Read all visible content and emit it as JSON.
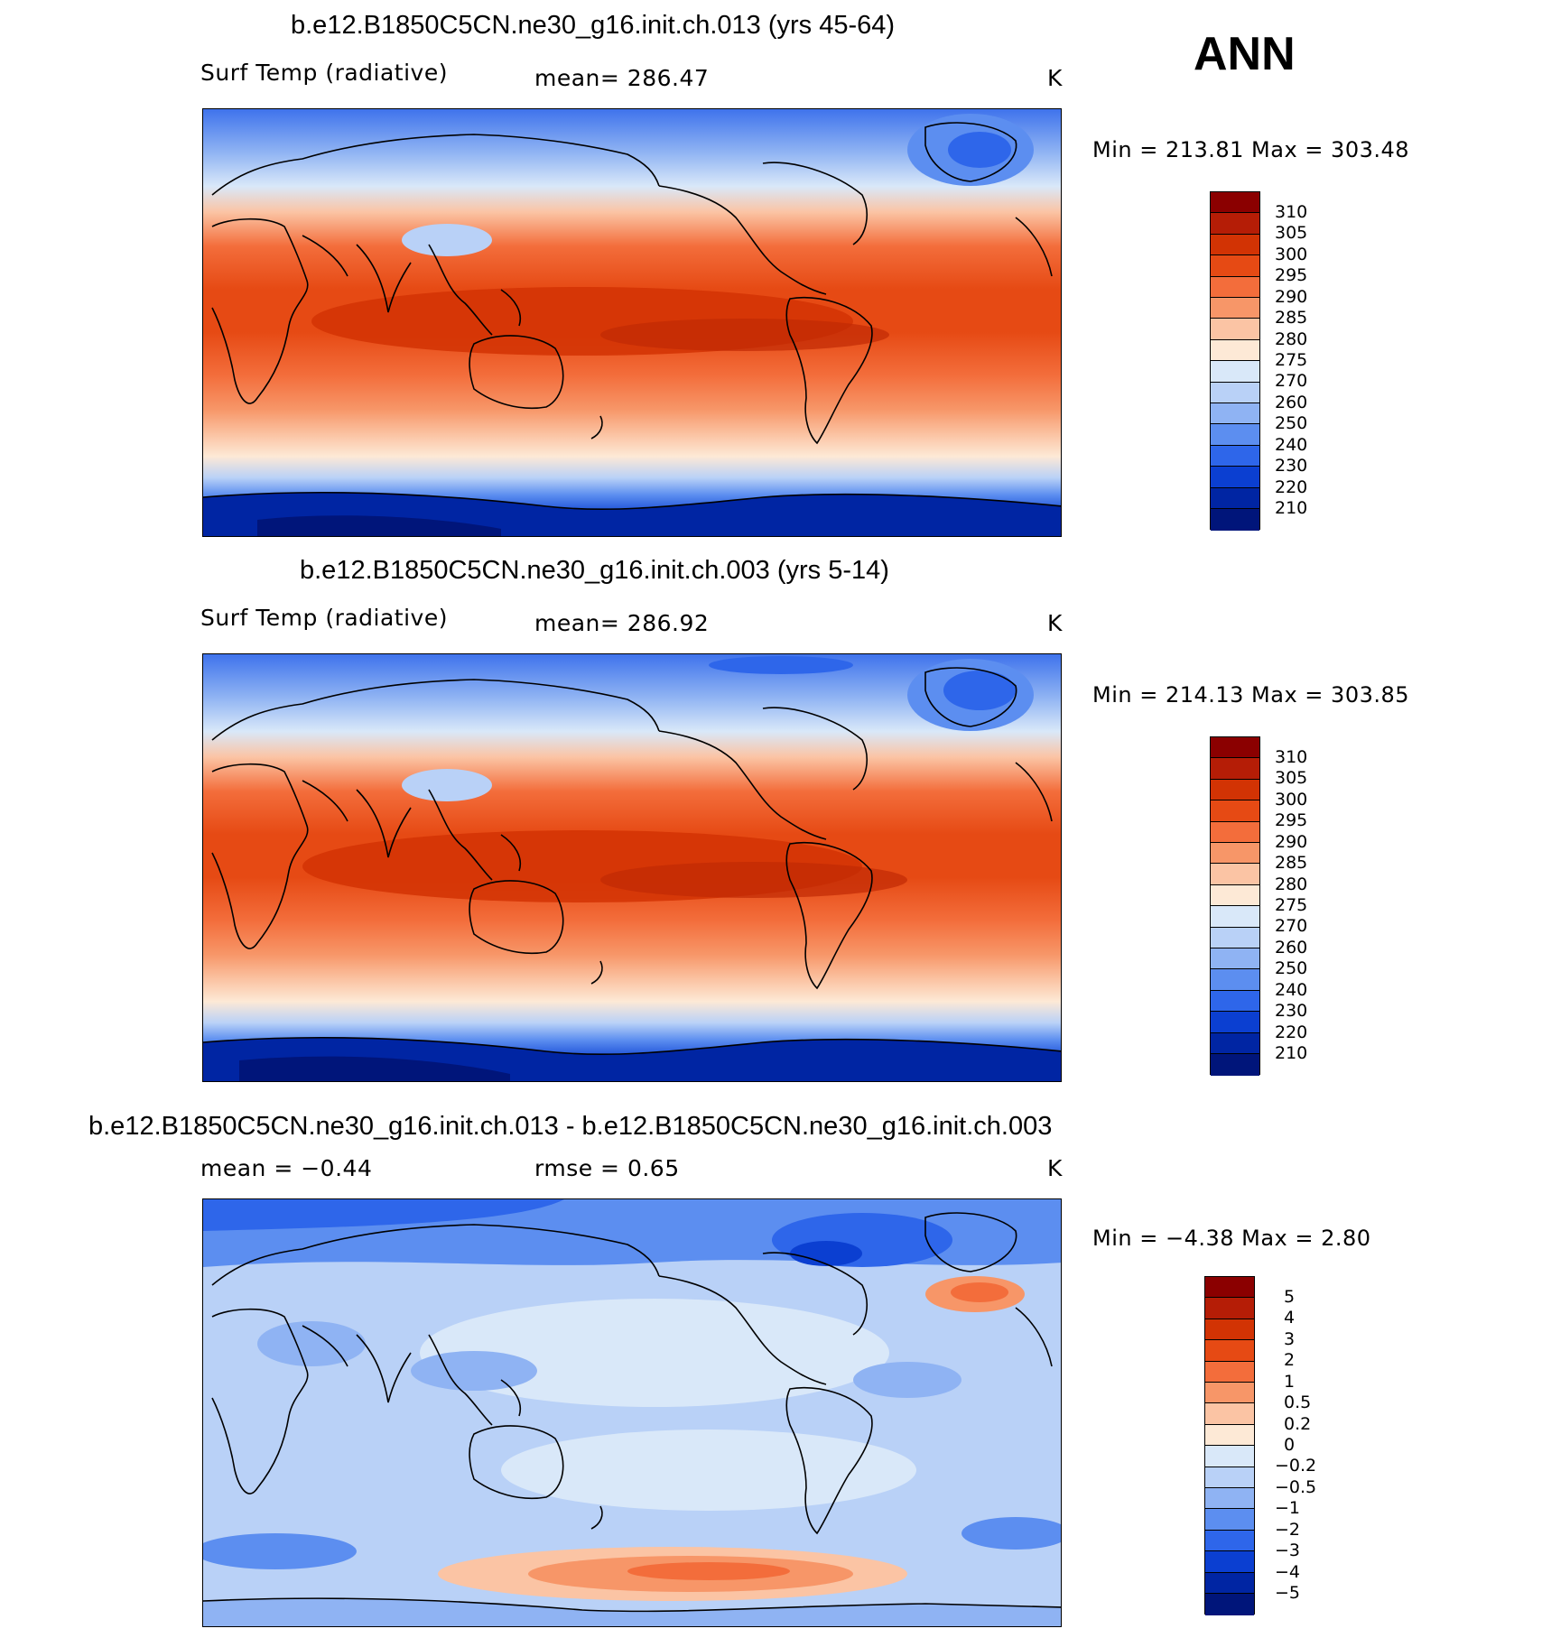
{
  "season": "ANN",
  "panels": [
    {
      "title": "b.e12.B1850C5CN.ne30_g16.init.ch.013 (yrs 45-64)",
      "left_label": "Surf Temp (radiative)",
      "center_label": "mean=  286.47",
      "units": "K",
      "minmax": "Min  =  213.81  Max  =  303.48",
      "colorbar_labels": [
        "310",
        "305",
        "300",
        "295",
        "290",
        "285",
        "280",
        "275",
        "270",
        "260",
        "250",
        "240",
        "230",
        "220",
        "210"
      ],
      "type": "field"
    },
    {
      "title": "b.e12.B1850C5CN.ne30_g16.init.ch.003 (yrs 5-14)",
      "left_label": "Surf Temp (radiative)",
      "center_label": "mean=  286.92",
      "units": "K",
      "minmax": "Min  =  214.13  Max  =  303.85",
      "colorbar_labels": [
        "310",
        "305",
        "300",
        "295",
        "290",
        "285",
        "280",
        "275",
        "270",
        "260",
        "250",
        "240",
        "230",
        "220",
        "210"
      ],
      "type": "field"
    },
    {
      "title": "b.e12.B1850C5CN.ne30_g16.init.ch.013 - b.e12.B1850C5CN.ne30_g16.init.ch.003",
      "left_label": "mean =    −0.44",
      "center_label": "rmse =     0.65",
      "units": "K",
      "minmax": "Min  =    −4.38  Max  =     2.80",
      "colorbar_labels": [
        "5",
        "4",
        "3",
        "2",
        "1",
        "0.5",
        "0.2",
        "0",
        "−0.2",
        "−0.5",
        "−1",
        "−2",
        "−3",
        "−4",
        "−5"
      ],
      "type": "diff"
    }
  ],
  "palette": {
    "field_colors": [
      "#8b0000",
      "#b51d06",
      "#d23304",
      "#e64a14",
      "#f36d3b",
      "#f79668",
      "#fbc4a4",
      "#fde9d6",
      "#d9e8f9",
      "#b9d1f7",
      "#8fb3f3",
      "#5c8ef0",
      "#2e66ea",
      "#0b3fd1",
      "#0025a3",
      "#00157a"
    ],
    "diff_colors": [
      "#8b0000",
      "#b51d06",
      "#d23304",
      "#e64a14",
      "#f36d3b",
      "#f79668",
      "#fbc4a4",
      "#fde9d6",
      "#d9e8f9",
      "#b9d1f7",
      "#8fb3f3",
      "#5c8ef0",
      "#2e66ea",
      "#0b3fd1",
      "#0025a3",
      "#00157a"
    ]
  }
}
